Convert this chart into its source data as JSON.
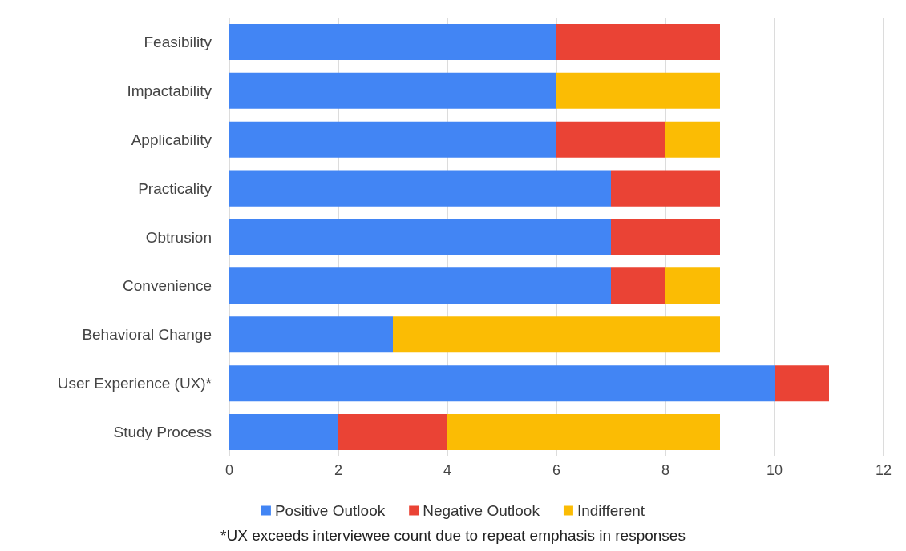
{
  "chart_data": {
    "type": "bar",
    "orientation": "horizontal",
    "stacked": true,
    "categories": [
      "Feasibility",
      "Impactability",
      "Applicability",
      "Practicality",
      "Obtrusion",
      "Convenience",
      "Behavioral Change",
      "User Experience (UX)*",
      "Study Process"
    ],
    "series": [
      {
        "name": "Positive Outlook",
        "color": "#4285f4",
        "values": [
          6,
          6,
          6,
          7,
          7,
          7,
          3,
          10,
          2
        ]
      },
      {
        "name": "Negative Outlook",
        "color": "#ea4335",
        "values": [
          3,
          0,
          2,
          2,
          2,
          1,
          0,
          1,
          2
        ]
      },
      {
        "name": "Indifferent",
        "color": "#fbbc04",
        "values": [
          0,
          3,
          1,
          0,
          0,
          1,
          6,
          0,
          5
        ]
      }
    ],
    "xlim": [
      0,
      12
    ],
    "xticks": [
      0,
      2,
      4,
      6,
      8,
      10,
      12
    ],
    "grid": "x",
    "legend": "bottom",
    "annotations": [
      "*UX exceeds interviewee count due to repeat emphasis in responses"
    ]
  }
}
